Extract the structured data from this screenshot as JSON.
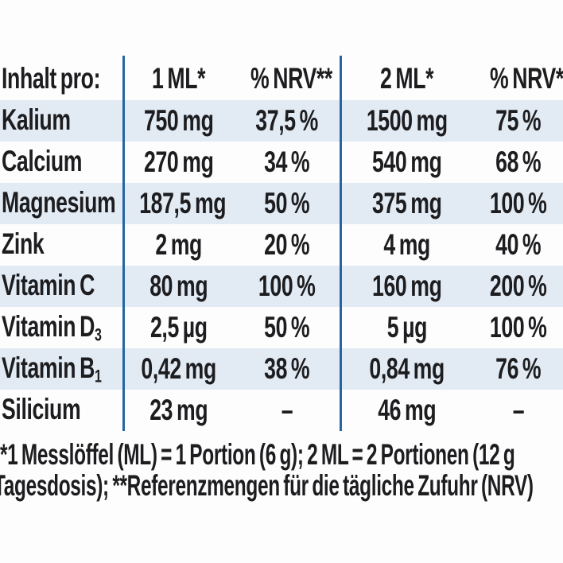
{
  "colors": {
    "stripe": "#e2eaf4",
    "divider_blue": "#2565a3",
    "text": "#1d1d1f",
    "background": "#fdfdfe"
  },
  "table": {
    "header": [
      "Inhalt pro:",
      "1 ML*",
      "% NRV**",
      "2 ML*",
      "% NRV**"
    ],
    "rows": [
      {
        "label": "Kalium",
        "sub": "",
        "ml1": "750 mg",
        "nrv1": "37,5 %",
        "ml2": "1500 mg",
        "nrv2": "75 %"
      },
      {
        "label": "Calcium",
        "sub": "",
        "ml1": "270 mg",
        "nrv1": "34 %",
        "ml2": "540 mg",
        "nrv2": "68 %"
      },
      {
        "label": "Magnesium",
        "sub": "",
        "ml1": "187,5 mg",
        "nrv1": "50 %",
        "ml2": "375 mg",
        "nrv2": "100 %"
      },
      {
        "label": "Zink",
        "sub": "",
        "ml1": "2 mg",
        "nrv1": "20 %",
        "ml2": "4 mg",
        "nrv2": "40 %"
      },
      {
        "label": "Vitamin C",
        "sub": "",
        "ml1": "80 mg",
        "nrv1": "100 %",
        "ml2": "160 mg",
        "nrv2": "200 %"
      },
      {
        "label": "Vitamin D",
        "sub": "3",
        "ml1": "2,5 µg",
        "nrv1": "50 %",
        "ml2": "5 µg",
        "nrv2": "100 %"
      },
      {
        "label": "Vitamin B",
        "sub": "1",
        "ml1": "0,42 mg",
        "nrv1": "38 %",
        "ml2": "0,84 mg",
        "nrv2": "76 %"
      },
      {
        "label": "Silicium",
        "sub": "",
        "ml1": "23 mg",
        "nrv1": "–",
        "ml2": "46 mg",
        "nrv2": "–"
      }
    ]
  },
  "footnote": {
    "line1": "*1 Messlöffel (ML) = 1 Portion (6 g); 2 ML = 2 Portionen (12 g",
    "line2": "Tagesdosis); **Referenzmengen für die tägliche Zufuhr (NRV)"
  }
}
